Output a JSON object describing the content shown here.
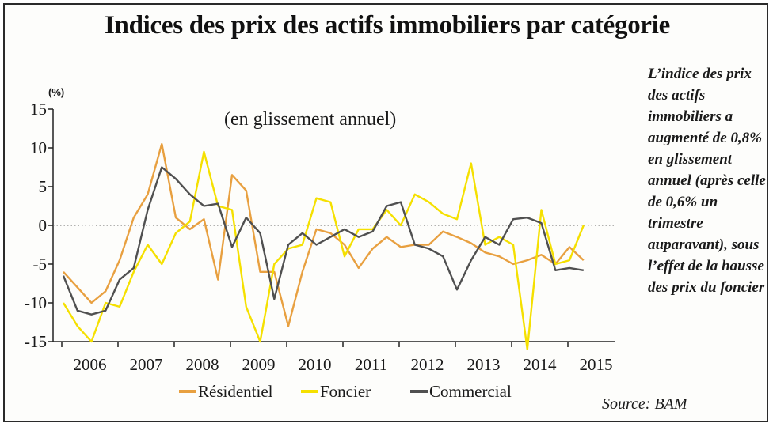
{
  "title": "Indices des prix des actifs immobiliers par catégorie",
  "side_note": "L’indice des prix des actifs immobiliers a augmenté de 0,8% en glissement annuel (après celle de 0,6% un trimestre auparavant), sous l’effet de la hausse des prix du foncier",
  "source": "Source: BAM",
  "chart_data": {
    "type": "line",
    "subtitle": "(en glissement annuel)",
    "unit": "(%)",
    "xlabel": "",
    "ylabel": "",
    "ylim": [
      -15,
      15
    ],
    "yticks": [
      15,
      10,
      5,
      0,
      -5,
      -10,
      -15
    ],
    "ytick_labels": [
      "15",
      "10",
      "5",
      "0",
      "-5",
      "-10",
      "-15"
    ],
    "x_year_labels": [
      "2006",
      "2007",
      "2008",
      "2009",
      "2010",
      "2011",
      "2012",
      "2013",
      "2014",
      "2015"
    ],
    "x": [
      "2005Q4",
      "2006Q1",
      "2006Q2",
      "2006Q3",
      "2006Q4",
      "2007Q1",
      "2007Q2",
      "2007Q3",
      "2007Q4",
      "2008Q1",
      "2008Q2",
      "2008Q3",
      "2008Q4",
      "2009Q1",
      "2009Q2",
      "2009Q3",
      "2009Q4",
      "2010Q1",
      "2010Q2",
      "2010Q3",
      "2010Q4",
      "2011Q1",
      "2011Q2",
      "2011Q3",
      "2011Q4",
      "2012Q1",
      "2012Q2",
      "2012Q3",
      "2012Q4",
      "2013Q1",
      "2013Q2",
      "2013Q3",
      "2013Q4",
      "2014Q1",
      "2014Q2",
      "2014Q3",
      "2014Q4",
      "2015Q1"
    ],
    "zero_line": "dotted",
    "legend_position": "bottom",
    "series": [
      {
        "name": "Résidentiel",
        "color": "#e8a040",
        "values": [
          -6,
          -8,
          -10,
          -8.5,
          -4.5,
          1,
          4,
          10.5,
          1,
          -0.5,
          0.8,
          -7,
          6.5,
          4.5,
          -6,
          -6,
          -13,
          -6,
          -0.5,
          -1,
          -2.5,
          -5.5,
          -3,
          -1.5,
          -2.8,
          -2.5,
          -2.5,
          -0.8,
          -1.5,
          -2.3,
          -3.5,
          -4,
          -5,
          -4.5,
          -3.8,
          -5,
          -2.8,
          -4.5
        ]
      },
      {
        "name": "Foncier",
        "color": "#f5e000",
        "values": [
          -10,
          -13,
          -15,
          -10,
          -10.5,
          -6,
          -2.5,
          -5,
          -1,
          0.5,
          9.5,
          2.5,
          2,
          -10.5,
          -15,
          -5,
          -3,
          -2.5,
          3.5,
          3,
          -4,
          -0.5,
          -0.5,
          2,
          0,
          4,
          3,
          1.5,
          0.8,
          8,
          -2.5,
          -1.5,
          -2.5,
          -16,
          2,
          -5,
          -4.5,
          0
        ]
      },
      {
        "name": "Commercial",
        "color": "#505050",
        "values": [
          -6.5,
          -11,
          -11.5,
          -11,
          -7,
          -5.5,
          2,
          7.5,
          6,
          4,
          2.5,
          2.8,
          -2.8,
          1,
          -1,
          -9.5,
          -2.5,
          -1,
          -2.5,
          -1.5,
          -0.5,
          -1.5,
          -0.8,
          2.5,
          3,
          -2.5,
          -3,
          -4,
          -8.3,
          -4.5,
          -1.5,
          -2.5,
          0.8,
          1,
          0.3,
          -5.8,
          -5.5,
          -5.8
        ]
      }
    ]
  }
}
